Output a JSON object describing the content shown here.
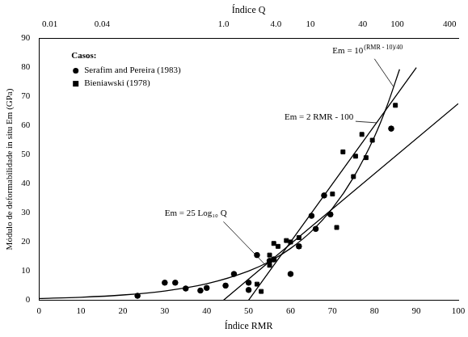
{
  "chart_data": {
    "type": "scatter",
    "x_label": "Índice RMR",
    "y_label": "Módulo de deformabilidade in situ Em (GPa)",
    "x2_label": "Índice Q",
    "xlim": [
      0,
      100
    ],
    "xticks": [
      0,
      10,
      20,
      30,
      40,
      50,
      60,
      70,
      80,
      90,
      100
    ],
    "ylim": [
      0,
      90
    ],
    "yticks": [
      0,
      10,
      20,
      30,
      40,
      50,
      60,
      70,
      80,
      90
    ],
    "x2lim": [
      0.0075,
      504
    ],
    "x2ticks": [
      0.01,
      0.04,
      {
        "value": 1,
        "label": "1.0"
      },
      {
        "value": 4,
        "label": "4.0"
      },
      10,
      40,
      100,
      400
    ],
    "log": "x2",
    "grid": false,
    "legend": "upper left",
    "legend_title": "Casos:",
    "series": [
      {
        "name": "Serafim and Pereira (1983)",
        "color": "#000000",
        "marker": "circle",
        "x": [
          23.5,
          30,
          32.5,
          35,
          38.5,
          40,
          44.5,
          46.5,
          50,
          50,
          52,
          55,
          56,
          60,
          62,
          65,
          66,
          68,
          69.5,
          84
        ],
        "values": [
          1.5,
          6,
          6,
          4,
          3.3,
          4.2,
          5,
          9,
          6,
          3.5,
          15.5,
          13.5,
          14,
          9,
          18.5,
          29,
          24.5,
          36,
          29.5,
          59
        ]
      },
      {
        "name": "Bieniawski (1978)",
        "color": "#000000",
        "marker": "square",
        "x": [
          52,
          53,
          55,
          55,
          56,
          57,
          59,
          60,
          62,
          62,
          70,
          71,
          72.5,
          75,
          75.5,
          77,
          78,
          79.5,
          85
        ],
        "values": [
          5.5,
          3,
          15.5,
          12,
          19.5,
          18.5,
          20.5,
          20,
          18.5,
          21.5,
          36.5,
          25,
          51,
          42.5,
          49.5,
          57,
          49,
          55,
          67
        ]
      },
      {
        "type": "line",
        "color": "#000000",
        "marker": "none",
        "line_style": "solid",
        "x": [
          0,
          10,
          20,
          30,
          40,
          50,
          55,
          60,
          65,
          70,
          75,
          80,
          83,
          86
        ],
        "values": [
          0.56,
          1,
          1.78,
          3.16,
          5.62,
          10,
          13.3,
          17.8,
          23.7,
          31.6,
          42.2,
          56.2,
          66.8,
          79.4
        ]
      },
      {
        "type": "line",
        "color": "#000000",
        "marker": "none",
        "line_style": "solid",
        "x": [
          50,
          90
        ],
        "values": [
          0,
          80
        ]
      },
      {
        "type": "line",
        "color": "#000000",
        "marker": "none",
        "line_style": "solid",
        "x": [
          44,
          100
        ],
        "values": [
          0,
          67.6
        ]
      }
    ],
    "annotations": [
      {
        "text": "Em = 10",
        "superscript": "(RMR - 10)/40"
      },
      {
        "text": "Em = 2 RMR - 100"
      },
      {
        "text": "Em = 25 Log₁₀ Q"
      }
    ]
  }
}
